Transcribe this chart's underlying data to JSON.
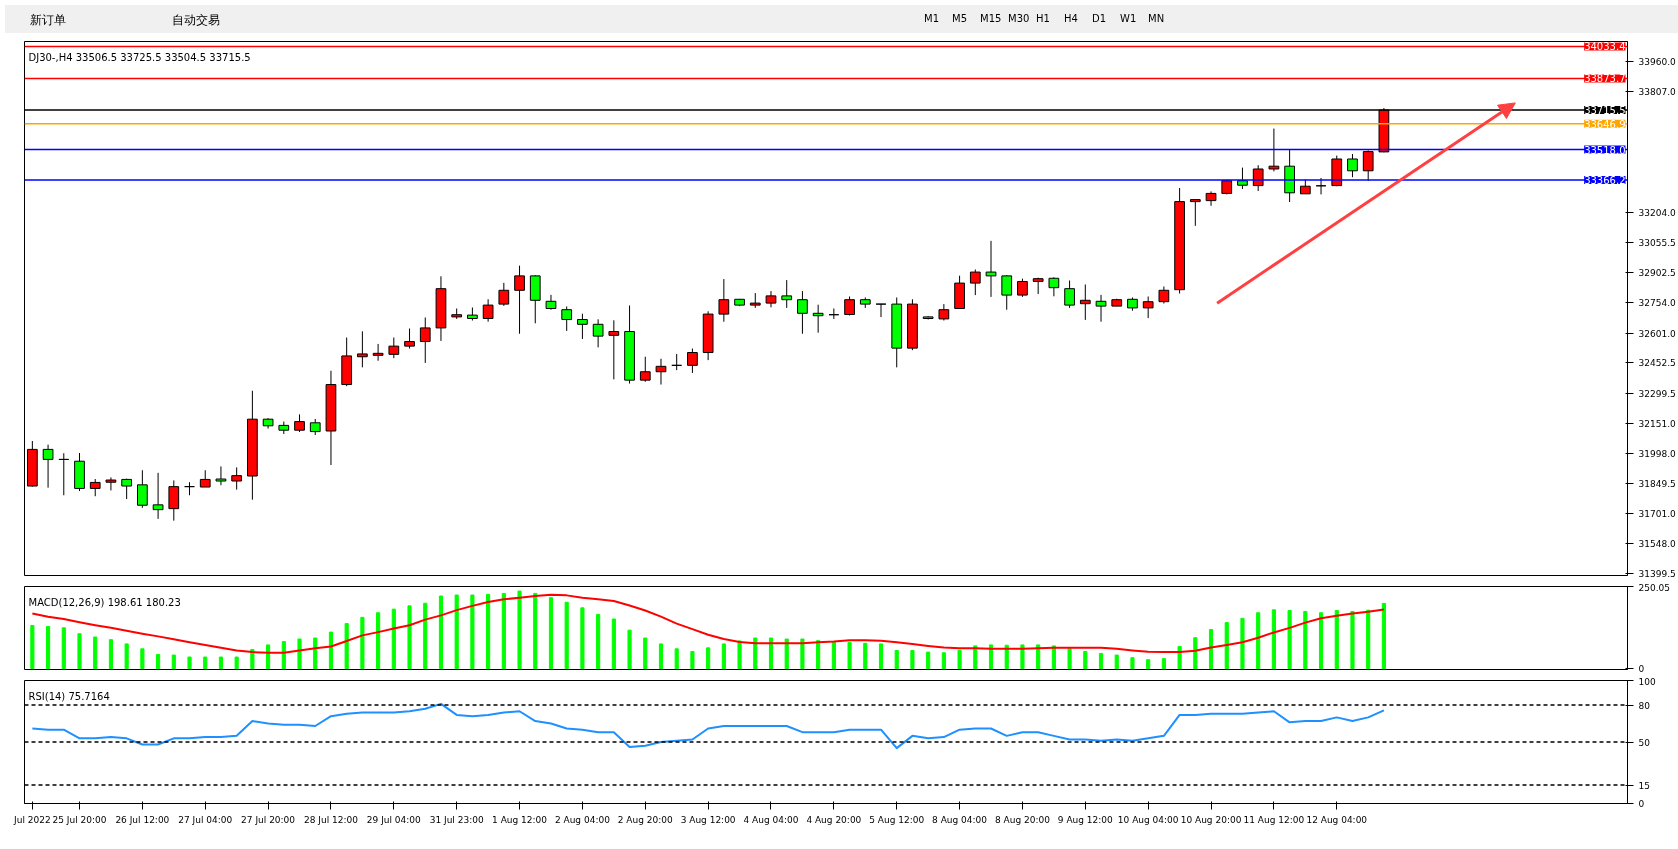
{
  "chart_data": [
    {
      "type": "candlestick",
      "annotations": [
        "新订单",
        "自动交易",
        "M1",
        "M5",
        "M15",
        "M30",
        "H1",
        "H4",
        "D1",
        "W1",
        "MN"
      ],
      "title": "DJ30-,H4  33506.5 33725.5 33504.5 33715.5",
      "tick_labels": "y",
      "categories": [
        null,
        null,
        null,
        null,
        null,
        null,
        null,
        null,
        null,
        null,
        null,
        null,
        null,
        null,
        null,
        null,
        null,
        null,
        null,
        null,
        null,
        null,
        null,
        null,
        null,
        null,
        null,
        null,
        null,
        null,
        null,
        null,
        null,
        null,
        null,
        null,
        null,
        null,
        null,
        null,
        null,
        null,
        null,
        null,
        null,
        null,
        null,
        null,
        null,
        null,
        null,
        null,
        null,
        null,
        null,
        null,
        null,
        null,
        null,
        null,
        null,
        null,
        null,
        null,
        null,
        null,
        null,
        null,
        null,
        null,
        null,
        null,
        null,
        null,
        null,
        null,
        null,
        null,
        null,
        null,
        null,
        null,
        null,
        null,
        null,
        null,
        null,
        null,
        null,
        null,
        null,
        null,
        null,
        null,
        null,
        null,
        null,
        null,
        null,
        null,
        null,
        null
      ],
      "ohlc": [
        [
          31837,
          32062,
          31834,
          32020
        ],
        [
          32020,
          32044,
          31829,
          31970
        ],
        [
          31970,
          32001,
          31791,
          31970
        ],
        [
          31961,
          32002,
          31812,
          31825
        ],
        [
          31825,
          31872,
          31786,
          31855
        ],
        [
          31856,
          31880,
          31815,
          31867
        ],
        [
          31870,
          31874,
          31772,
          31837
        ],
        [
          31843,
          31916,
          31728,
          31741
        ],
        [
          31743,
          31903,
          31673,
          31719
        ],
        [
          31724,
          31865,
          31664,
          31834
        ],
        [
          31834,
          31856,
          31791,
          31834
        ],
        [
          31832,
          31916,
          31832,
          31870
        ],
        [
          31872,
          31935,
          31841,
          31862
        ],
        [
          31862,
          31930,
          31819,
          31889
        ],
        [
          31887,
          32313,
          31769,
          32171
        ],
        [
          32171,
          32176,
          32124,
          32138
        ],
        [
          32140,
          32159,
          32097,
          32116
        ],
        [
          32116,
          32195,
          32107,
          32159
        ],
        [
          32153,
          32172,
          32092,
          32109
        ],
        [
          32112,
          32413,
          31942,
          32344
        ],
        [
          32344,
          32579,
          32336,
          32487
        ],
        [
          32483,
          32610,
          32430,
          32497
        ],
        [
          32490,
          32547,
          32463,
          32500
        ],
        [
          32495,
          32579,
          32476,
          32536
        ],
        [
          32536,
          32624,
          32524,
          32559
        ],
        [
          32559,
          32679,
          32452,
          32627
        ],
        [
          32627,
          32885,
          32562,
          32823
        ],
        [
          32682,
          32724,
          32672,
          32693
        ],
        [
          32691,
          32729,
          32664,
          32674
        ],
        [
          32674,
          32770,
          32658,
          32741
        ],
        [
          32746,
          32852,
          32737,
          32815
        ],
        [
          32815,
          32938,
          32598,
          32887
        ],
        [
          32887,
          32890,
          32650,
          32765
        ],
        [
          32760,
          32792,
          32718,
          32724
        ],
        [
          32718,
          32734,
          32612,
          32669
        ],
        [
          32669,
          32698,
          32572,
          32645
        ],
        [
          32645,
          32670,
          32530,
          32586
        ],
        [
          32590,
          32665,
          32370,
          32609
        ],
        [
          32609,
          32739,
          32349,
          32366
        ],
        [
          32366,
          32483,
          32358,
          32408
        ],
        [
          32408,
          32473,
          32344,
          32435
        ],
        [
          32440,
          32497,
          32416,
          32440
        ],
        [
          32440,
          32524,
          32402,
          32504
        ],
        [
          32504,
          32710,
          32466,
          32696
        ],
        [
          32696,
          32871,
          32658,
          32768
        ],
        [
          32770,
          32772,
          32736,
          32741
        ],
        [
          32741,
          32801,
          32727,
          32751
        ],
        [
          32751,
          32811,
          32730,
          32787
        ],
        [
          32787,
          32866,
          32727,
          32768
        ],
        [
          32768,
          32811,
          32598,
          32700
        ],
        [
          32700,
          32743,
          32603,
          32688
        ],
        [
          32693,
          32724,
          32672,
          32693
        ],
        [
          32694,
          32784,
          32689,
          32768
        ],
        [
          32768,
          32779,
          32727,
          32746
        ],
        [
          32746,
          32746,
          32681,
          32746
        ],
        [
          32746,
          32779,
          32430,
          32526
        ],
        [
          32526,
          32770,
          32516,
          32746
        ],
        [
          32682,
          32686,
          32669,
          32674
        ],
        [
          32672,
          32746,
          32664,
          32718
        ],
        [
          32724,
          32888,
          32724,
          32851
        ],
        [
          32851,
          32919,
          32791,
          32906
        ],
        [
          32906,
          33062,
          32782,
          32887
        ],
        [
          32887,
          32890,
          32718,
          32791
        ],
        [
          32791,
          32873,
          32782,
          32859
        ],
        [
          32859,
          32878,
          32796,
          32873
        ],
        [
          32875,
          32880,
          32785,
          32828
        ],
        [
          32823,
          32864,
          32727,
          32741
        ],
        [
          32748,
          32844,
          32667,
          32765
        ],
        [
          32760,
          32792,
          32658,
          32736
        ],
        [
          32736,
          32773,
          32736,
          32768
        ],
        [
          32770,
          32779,
          32713,
          32727
        ],
        [
          32727,
          32784,
          32676,
          32758
        ],
        [
          32758,
          32834,
          32749,
          32815
        ],
        [
          32818,
          33326,
          32799,
          33258
        ],
        [
          33258,
          33271,
          33137,
          33268
        ],
        [
          33263,
          33309,
          33237,
          33299
        ],
        [
          33299,
          33366,
          33294,
          33362
        ],
        [
          33362,
          33428,
          33321,
          33340
        ],
        [
          33338,
          33440,
          33311,
          33421
        ],
        [
          33421,
          33623,
          33409,
          33435
        ],
        [
          33435,
          33520,
          33256,
          33302
        ],
        [
          33297,
          33368,
          33297,
          33335
        ],
        [
          33337,
          33376,
          33294,
          33337
        ],
        [
          33338,
          33488,
          33335,
          33471
        ],
        [
          33471,
          33496,
          33380,
          33412
        ],
        [
          33412,
          33514,
          33362,
          33508
        ],
        [
          33506.5,
          33725.5,
          33504.5,
          33715.5
        ],
        null,
        null,
        null,
        null,
        null,
        null,
        null,
        null,
        null,
        null,
        null,
        null,
        null,
        null,
        null
      ],
      "colors": [
        "#ff0000",
        "#00ff00",
        "#000000",
        "#00ff00",
        "#ff0000",
        "#ff0000",
        "#00ff00",
        "#00ff00",
        "#00ff00",
        "#ff0000",
        "#000000",
        "#ff0000",
        "#00ff00",
        "#ff0000",
        "#ff0000",
        "#00ff00",
        "#00ff00",
        "#ff0000",
        "#00ff00",
        "#ff0000",
        "#ff0000",
        "#ff0000",
        "#ff0000",
        "#ff0000",
        "#ff0000",
        "#ff0000",
        "#ff0000",
        "#ff0000",
        "#00ff00",
        "#ff0000",
        "#ff0000",
        "#ff0000",
        "#00ff00",
        "#00ff00",
        "#00ff00",
        "#00ff00",
        "#00ff00",
        "#ff0000",
        "#00ff00",
        "#ff0000",
        "#ff0000",
        "#000000",
        "#ff0000",
        "#ff0000",
        "#ff0000",
        "#00ff00",
        "#ff0000",
        "#ff0000",
        "#00ff00",
        "#00ff00",
        "#00ff00",
        "#000000",
        "#ff0000",
        "#00ff00",
        "#000000",
        "#00ff00",
        "#ff0000",
        "#00ff00",
        "#ff0000",
        "#ff0000",
        "#ff0000",
        "#00ff00",
        "#00ff00",
        "#ff0000",
        "#ff0000",
        "#00ff00",
        "#00ff00",
        "#ff0000",
        "#00ff00",
        "#ff0000",
        "#00ff00",
        "#ff0000",
        "#ff0000",
        "#ff0000",
        "#ff0000",
        "#ff0000",
        "#ff0000",
        "#00ff00",
        "#ff0000",
        "#ff0000",
        "#00ff00",
        "#ff0000",
        "#000000",
        "#ff0000",
        "#00ff00",
        "#ff0000",
        "#ff0000",
        null,
        null,
        null,
        null,
        null,
        null,
        null,
        null,
        null,
        null,
        null,
        null,
        null,
        null,
        null
      ],
      "ylim": [
        31390,
        34058
      ],
      "yticks": [
        {
          "value": 33960,
          "label": "33960.0"
        },
        {
          "value": 33807,
          "label": "33807.0"
        },
        {
          "value": 33204,
          "label": "33204.0"
        },
        {
          "value": 33055.5,
          "label": "33055.5"
        },
        {
          "value": 32902.5,
          "label": "32902.5"
        },
        {
          "value": 32754,
          "label": "32754.0"
        },
        {
          "value": 32601,
          "label": "32601.0"
        },
        {
          "value": 32452.5,
          "label": "32452.5"
        },
        {
          "value": 32299.5,
          "label": "32299.5"
        },
        {
          "value": 32151,
          "label": "32151.0"
        },
        {
          "value": 31998,
          "label": "31998.0"
        },
        {
          "value": 31849.5,
          "label": "31849.5"
        },
        {
          "value": 31701,
          "label": "31701.0"
        },
        {
          "value": 31548,
          "label": "31548.0"
        },
        {
          "value": 31399.5,
          "label": "31399.5"
        }
      ],
      "ref_lines": [
        {
          "axis": "y",
          "value": 34033.4,
          "label": "34033.4",
          "color": "#ff0000"
        },
        {
          "axis": "y",
          "value": 33873.7,
          "label": "33873.7",
          "color": "#ff0000"
        },
        {
          "axis": "y",
          "value": 33715.5,
          "label": "33715.5",
          "color": "#000000"
        },
        {
          "axis": "y",
          "value": 33646.9,
          "label": "33646.9",
          "color": "#ffa500"
        },
        {
          "axis": "y",
          "value": 33518.0,
          "label": "33518.0",
          "color": "#0000ff"
        },
        {
          "axis": "y",
          "value": 33366.2,
          "label": "33366.2",
          "color": "#0000ff"
        }
      ]
    },
    {
      "type": "bar",
      "title": "MACD(12,26,9) 198.61 180.23",
      "tick_labels": "y",
      "categories": [
        null,
        null,
        null,
        null,
        null,
        null,
        null,
        null,
        null,
        null,
        null,
        null,
        null,
        null,
        null,
        null,
        null,
        null,
        null,
        null,
        null,
        null,
        null,
        null,
        null,
        null,
        null,
        null,
        null,
        null,
        null,
        null,
        null,
        null,
        null,
        null,
        null,
        null,
        null,
        null,
        null,
        null,
        null,
        null,
        null,
        null,
        null,
        null,
        null,
        null,
        null,
        null,
        null,
        null,
        null,
        null,
        null,
        null,
        null,
        null,
        null,
        null,
        null,
        null,
        null,
        null,
        null,
        null,
        null,
        null,
        null,
        null,
        null,
        null,
        null,
        null,
        null,
        null,
        null,
        null,
        null,
        null,
        null,
        null,
        null,
        null,
        null,
        null,
        null,
        null,
        null,
        null,
        null,
        null,
        null,
        null,
        null,
        null,
        null,
        null,
        null,
        null
      ],
      "series": [
        {
          "type": "bar",
          "color": "#00ff00",
          "values": [
            131,
            128,
            124,
            106,
            96,
            88,
            75,
            60,
            43,
            41,
            35,
            35,
            35,
            35,
            58,
            72,
            82,
            90,
            93,
            111,
            137,
            156,
            170,
            181,
            191,
            199,
            221,
            224,
            224,
            226,
            229,
            236,
            229,
            216,
            202,
            185,
            165,
            151,
            117,
            93,
            75,
            60,
            52,
            63,
            75,
            84,
            93,
            93,
            90,
            90,
            85,
            82,
            80,
            77,
            75,
            55,
            55,
            50,
            48,
            56,
            69,
            72,
            71,
            72,
            72,
            69,
            60,
            52,
            46,
            41,
            33,
            27,
            30,
            67,
            94,
            119,
            140,
            153,
            170,
            179,
            177,
            174,
            170,
            177,
            174,
            178,
            198.61,
            null,
            null,
            null,
            null,
            null,
            null,
            null,
            null,
            null,
            null,
            null,
            null,
            null,
            null,
            null
          ]
        },
        {
          "type": "line",
          "color": "#ff0000",
          "values": [
            168,
            158,
            151,
            141,
            132,
            124,
            115,
            106,
            98,
            89,
            80,
            72,
            63,
            55,
            50,
            48,
            48,
            55,
            62,
            67,
            84,
            101,
            111,
            122,
            132,
            149,
            162,
            178,
            191,
            203,
            211,
            216,
            221,
            225,
            223,
            216,
            211,
            206,
            192,
            177,
            158,
            137,
            120,
            103,
            90,
            81,
            77,
            77,
            77,
            77,
            80,
            82,
            86,
            86,
            85,
            80,
            75,
            69,
            64,
            62,
            62,
            60,
            60,
            60,
            62,
            63,
            63,
            63,
            63,
            60,
            55,
            51,
            50,
            50,
            54,
            64,
            72,
            80,
            94,
            110,
            124,
            140,
            153,
            161,
            168,
            173,
            180.23,
            null,
            null,
            null,
            null,
            null,
            null,
            null,
            null,
            null,
            null,
            null,
            null,
            null,
            null,
            null
          ]
        }
      ],
      "ylim": [
        -3,
        250.05
      ],
      "yticks": [
        250.05,
        0
      ]
    },
    {
      "type": "line",
      "title": "RSI(14) 75.7164",
      "categories": [
        "Jul 2022",
        null,
        null,
        "25 Jul 20:00",
        null,
        null,
        null,
        "26 Jul 12:00",
        null,
        null,
        null,
        "27 Jul 04:00",
        null,
        null,
        null,
        "27 Jul 20:00",
        null,
        null,
        null,
        "28 Jul 12:00",
        null,
        null,
        null,
        "29 Jul 04:00",
        null,
        null,
        null,
        "31 Jul 23:00",
        null,
        null,
        null,
        "1 Aug 12:00",
        null,
        null,
        null,
        "2 Aug 04:00",
        null,
        null,
        null,
        "2 Aug 20:00",
        null,
        null,
        null,
        "3 Aug 12:00",
        null,
        null,
        null,
        "4 Aug 04:00",
        null,
        null,
        null,
        "4 Aug 20:00",
        null,
        null,
        null,
        "5 Aug 12:00",
        null,
        null,
        null,
        "8 Aug 04:00",
        null,
        null,
        null,
        "8 Aug 20:00",
        null,
        null,
        null,
        "9 Aug 12:00",
        null,
        null,
        null,
        "10 Aug 04:00",
        null,
        null,
        null,
        "10 Aug 20:00",
        null,
        null,
        null,
        "11 Aug 12:00",
        null,
        null,
        null,
        "12 Aug 04:00",
        null,
        null,
        null,
        null,
        null,
        null,
        null,
        null,
        null,
        null,
        null,
        null,
        null,
        null,
        null,
        null,
        null,
        null
      ],
      "series": [
        {
          "color": "#1e90ff",
          "values": [
            61,
            60,
            60,
            53,
            53,
            54,
            53,
            48,
            48,
            53,
            53,
            54,
            54,
            55,
            67,
            65,
            64,
            64,
            63,
            71,
            73,
            74,
            74,
            74,
            75,
            77,
            81,
            72,
            71,
            72,
            74,
            75,
            67,
            65,
            61,
            60,
            58,
            58,
            46,
            47,
            50,
            51,
            52,
            61,
            63,
            63,
            63,
            63,
            63,
            58,
            58,
            58,
            60,
            60,
            60,
            45,
            55,
            53,
            54,
            60,
            61,
            61,
            55,
            58,
            58,
            55,
            52,
            52,
            51,
            52,
            51,
            53,
            55,
            72,
            72,
            73,
            73,
            73,
            74,
            75,
            66,
            67,
            67,
            70,
            67,
            70,
            75.7164,
            null,
            null,
            null,
            null,
            null,
            null,
            null,
            null,
            null,
            null,
            null,
            null,
            null,
            null,
            null
          ]
        }
      ],
      "ylim": [
        0,
        100
      ],
      "yticks": [
        100,
        80,
        50,
        15,
        0
      ],
      "ref_lines": [
        {
          "axis": "y",
          "value": 80,
          "color": "#000000",
          "line_style": "dashed"
        },
        {
          "axis": "y",
          "value": 50,
          "color": "#000000",
          "line_style": "dashed"
        },
        {
          "axis": "y",
          "value": 15,
          "color": "#000000",
          "line_style": "dashed"
        }
      ]
    }
  ]
}
